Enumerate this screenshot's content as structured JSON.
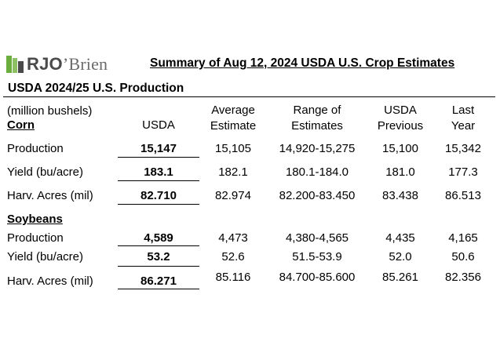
{
  "logo": {
    "rjo": "RJO",
    "obrien": "’Brien"
  },
  "title": "Summary of Aug 12, 2024 USDA U.S. Crop Estimates",
  "subtitle": "USDA 2024/25 U.S. Production",
  "units": "(million bushels)",
  "headers": {
    "usda": "USDA",
    "avg_1": "Average",
    "avg_2": "Estimate",
    "range_1": "Range of",
    "range_2": "Estimates",
    "prev_1": "USDA",
    "prev_2": "Previous",
    "last_1": "Last",
    "last_2": "Year"
  },
  "corn": {
    "label": "Corn",
    "rows": [
      {
        "label": "Production",
        "usda": "15,147",
        "avg": "15,105",
        "range": "14,920-15,275",
        "prev": "15,100",
        "last": "15,342"
      },
      {
        "label": "Yield (bu/acre)",
        "usda": "183.1",
        "avg": "182.1",
        "range": "180.1-184.0",
        "prev": "181.0",
        "last": "177.3"
      },
      {
        "label": "Harv. Acres (mil)",
        "usda": "82.710",
        "avg": "82.974",
        "range": "82.200-83.450",
        "prev": "83.438",
        "last": "86.513"
      }
    ]
  },
  "soybeans": {
    "label": "Soybeans",
    "rows": [
      {
        "label": "Production",
        "usda": "4,589",
        "avg": "4,473",
        "range": "4,380-4,565",
        "prev": "4,435",
        "last": "4,165"
      },
      {
        "label": "Yield (bu/acre)",
        "usda": "53.2",
        "avg": "52.6",
        "range": "51.5-53.9",
        "prev": "52.0",
        "last": "50.6"
      },
      {
        "label": "Harv. Acres (mil)",
        "usda": "86.271",
        "avg": "85.116",
        "range": "84.700-85.600",
        "prev": "85.261",
        "last": "82.356"
      }
    ]
  },
  "colors": {
    "logo_green": "#6cae3e",
    "logo_gray": "#4a4a4a"
  }
}
